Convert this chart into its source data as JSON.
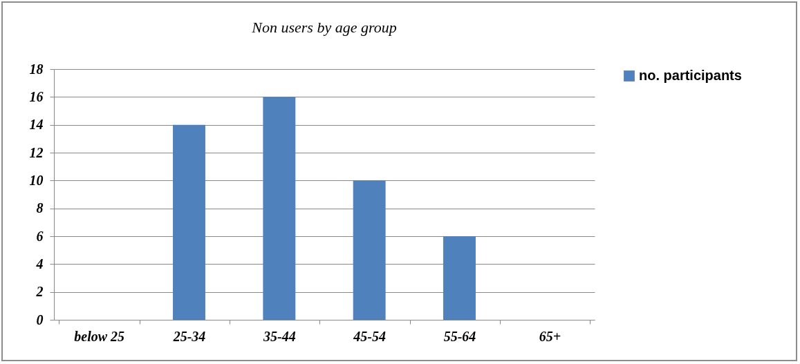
{
  "chart_data": {
    "type": "bar",
    "title": "Non users by age group",
    "categories": [
      "below 25",
      "25-34",
      "35-44",
      "45-54",
      "55-64",
      "65+"
    ],
    "series": [
      {
        "name": "no. participants",
        "color": "#4f81bd",
        "values": [
          0,
          14,
          16,
          10,
          6,
          0
        ]
      }
    ],
    "ylim": [
      0,
      18
    ],
    "yticks": [
      0,
      2,
      4,
      6,
      8,
      10,
      12,
      14,
      16,
      18
    ],
    "grid": "y",
    "legend": "right"
  }
}
